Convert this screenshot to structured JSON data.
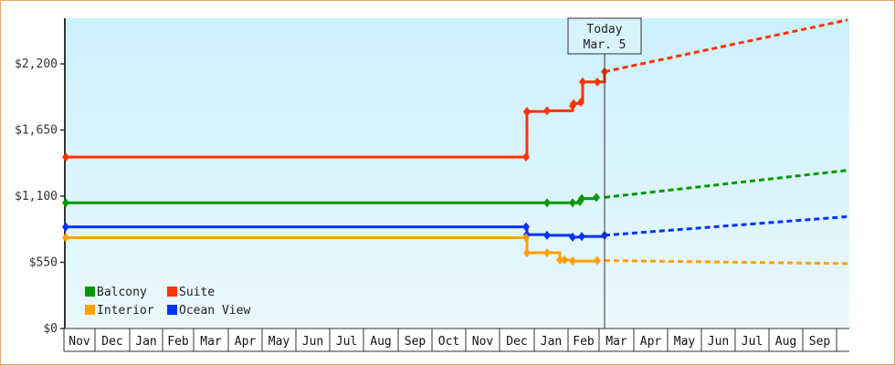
{
  "chart_data": {
    "type": "line",
    "title": "",
    "xlabel": "",
    "ylabel": "",
    "ylim": [
      0,
      2640
    ],
    "y_ticks": [
      "$0",
      "$550",
      "$1,100",
      "$1,650",
      "$2,200"
    ],
    "x_ticks": [
      "Nov",
      "Dec",
      "Jan",
      "Feb",
      "Mar",
      "Apr",
      "May",
      "Jun",
      "Jul",
      "Aug",
      "Sep",
      "Oct",
      "Nov",
      "Dec",
      "Jan",
      "Feb",
      "Mar",
      "Apr",
      "May",
      "Jun",
      "Jul",
      "Aug",
      "Sep"
    ],
    "annotation": {
      "label_line1": "Today",
      "label_line2": "Mar. 5"
    },
    "legend": [
      "Balcony",
      "Suite",
      "Interior",
      "Ocean View"
    ],
    "legend_position": "lower-left",
    "series": [
      {
        "name": "Suite",
        "color": "#ff3300",
        "history": [
          [
            "Nov",
            1425
          ],
          [
            "Dec",
            1425
          ],
          [
            "Dec",
            1800
          ],
          [
            "Jan",
            1805
          ],
          [
            "Feb",
            1810
          ],
          [
            "Feb",
            1850
          ],
          [
            "Feb",
            1870
          ],
          [
            "Feb",
            1880
          ],
          [
            "Feb",
            2050
          ],
          [
            "Mar",
            2050
          ],
          [
            "Mar",
            2135
          ]
        ],
        "forecast_end": 2565
      },
      {
        "name": "Balcony",
        "color": "#009900",
        "history": [
          [
            "Nov",
            1045
          ],
          [
            "Jan",
            1045
          ],
          [
            "Feb",
            1045
          ],
          [
            "Feb",
            1055
          ],
          [
            "Feb",
            1080
          ],
          [
            "Mar",
            1090
          ]
        ],
        "forecast_end": 1315
      },
      {
        "name": "Ocean View",
        "color": "#0033ff",
        "history": [
          [
            "Nov",
            845
          ],
          [
            "Dec",
            845
          ],
          [
            "Dec",
            780
          ],
          [
            "Jan",
            775
          ],
          [
            "Feb",
            760
          ],
          [
            "Feb",
            765
          ],
          [
            "Mar",
            775
          ]
        ],
        "forecast_end": 930
      },
      {
        "name": "Interior",
        "color": "#ffa000",
        "history": [
          [
            "Nov",
            755
          ],
          [
            "Dec",
            755
          ],
          [
            "Dec",
            630
          ],
          [
            "Jan",
            630
          ],
          [
            "Feb",
            570
          ],
          [
            "Feb",
            570
          ],
          [
            "Feb",
            560
          ],
          [
            "Mar",
            565
          ]
        ],
        "forecast_end": 540
      }
    ]
  }
}
